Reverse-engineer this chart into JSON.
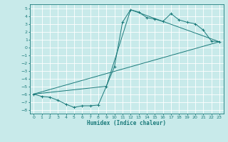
{
  "title": "",
  "xlabel": "Humidex (Indice chaleur)",
  "bg_color": "#c8eaea",
  "grid_color": "#ffffff",
  "line_color": "#1a7a7a",
  "xlim": [
    -0.5,
    23.5
  ],
  "ylim": [
    -8.5,
    5.5
  ],
  "xticks": [
    0,
    1,
    2,
    3,
    4,
    5,
    6,
    7,
    8,
    9,
    10,
    11,
    12,
    13,
    14,
    15,
    16,
    17,
    18,
    19,
    20,
    21,
    22,
    23
  ],
  "yticks": [
    -8,
    -7,
    -6,
    -5,
    -4,
    -3,
    -2,
    -1,
    0,
    1,
    2,
    3,
    4,
    5
  ],
  "line1_x": [
    0,
    1,
    2,
    3,
    4,
    5,
    6,
    7,
    8,
    9,
    10,
    11,
    12,
    13,
    14,
    15,
    16,
    17,
    18,
    19,
    20,
    21,
    22,
    23
  ],
  "line1_y": [
    -6.0,
    -6.3,
    -6.4,
    -6.8,
    -7.3,
    -7.7,
    -7.5,
    -7.5,
    -7.4,
    -5.0,
    -2.5,
    3.2,
    4.8,
    4.5,
    3.8,
    3.6,
    3.3,
    4.3,
    3.5,
    3.2,
    3.0,
    2.2,
    0.8,
    0.7
  ],
  "line2_x": [
    0,
    23
  ],
  "line2_y": [
    -6.0,
    0.7
  ],
  "line3_x": [
    0,
    9,
    12,
    23
  ],
  "line3_y": [
    -6.0,
    -5.0,
    4.8,
    0.7
  ]
}
